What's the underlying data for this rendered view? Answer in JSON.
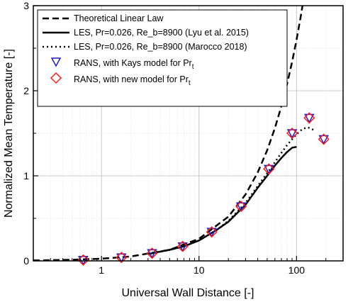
{
  "chart_data": {
    "type": "line",
    "xlabel": "Universal Wall Distance [-]",
    "ylabel": "Normalized Mean Temperature [-]",
    "xscale": "log",
    "xlim": [
      0.2,
      300
    ],
    "ylim": [
      0,
      3
    ],
    "x_ticks": [
      {
        "value": 1,
        "label": "1"
      },
      {
        "value": 10,
        "label": "10"
      },
      {
        "value": 100,
        "label": "100"
      }
    ],
    "y_ticks": [
      {
        "value": 0,
        "label": "0"
      },
      {
        "value": 1,
        "label": "1"
      },
      {
        "value": 2,
        "label": "2"
      },
      {
        "value": 3,
        "label": "3"
      }
    ],
    "grid": true,
    "legend_position": "top-left",
    "series": [
      {
        "name": "Theoretical Linear Law",
        "style": "dashed",
        "color": "#000000",
        "x": [
          0.2,
          0.5,
          1,
          2,
          5,
          10,
          20,
          30,
          40,
          50,
          60,
          70,
          80,
          90,
          100,
          110,
          120
        ],
        "y": [
          0.005,
          0.013,
          0.026,
          0.052,
          0.13,
          0.26,
          0.52,
          0.78,
          1.04,
          1.3,
          1.56,
          1.82,
          2.08,
          2.34,
          2.6,
          2.86,
          3.12
        ]
      },
      {
        "name": "LES, Pr=0.026, Re_b=8900 (Lyu et al. 2015)",
        "style": "solid",
        "color": "#000000",
        "x": [
          3,
          5,
          7,
          10,
          15,
          20,
          30,
          40,
          50,
          60,
          70,
          80,
          90,
          100
        ],
        "y": [
          0.08,
          0.13,
          0.17,
          0.24,
          0.36,
          0.46,
          0.66,
          0.86,
          1.0,
          1.12,
          1.21,
          1.28,
          1.33,
          1.34
        ]
      },
      {
        "name": "LES, Pr=0.026, Re_b=8900 (Marocco 2018)",
        "style": "dotted",
        "color": "#000000",
        "x": [
          3,
          5,
          7,
          10,
          15,
          20,
          30,
          40,
          50,
          60,
          70,
          80,
          90,
          100,
          115,
          130,
          150
        ],
        "y": [
          0.08,
          0.13,
          0.17,
          0.24,
          0.36,
          0.47,
          0.68,
          0.88,
          1.03,
          1.16,
          1.27,
          1.36,
          1.43,
          1.49,
          1.55,
          1.57,
          1.54
        ]
      },
      {
        "name": "RANS, with Kays model for Pr",
        "name_subscript": "t",
        "style": "marker",
        "marker": "triangle-down",
        "color": "#1f1fcc",
        "x": [
          0.65,
          1.6,
          3.3,
          6.8,
          13.5,
          27,
          52,
          90,
          135,
          190
        ],
        "y": [
          0.01,
          0.04,
          0.09,
          0.17,
          0.34,
          0.64,
          1.08,
          1.5,
          1.68,
          1.43
        ]
      },
      {
        "name": "RANS, with new model for Pr",
        "name_subscript": "t",
        "style": "marker",
        "marker": "diamond",
        "color": "#ff1a1a",
        "x": [
          0.65,
          1.6,
          3.3,
          6.8,
          13.5,
          27,
          52,
          90,
          135,
          190
        ],
        "y": [
          0.01,
          0.04,
          0.09,
          0.17,
          0.34,
          0.64,
          1.08,
          1.5,
          1.68,
          1.43
        ]
      }
    ]
  }
}
